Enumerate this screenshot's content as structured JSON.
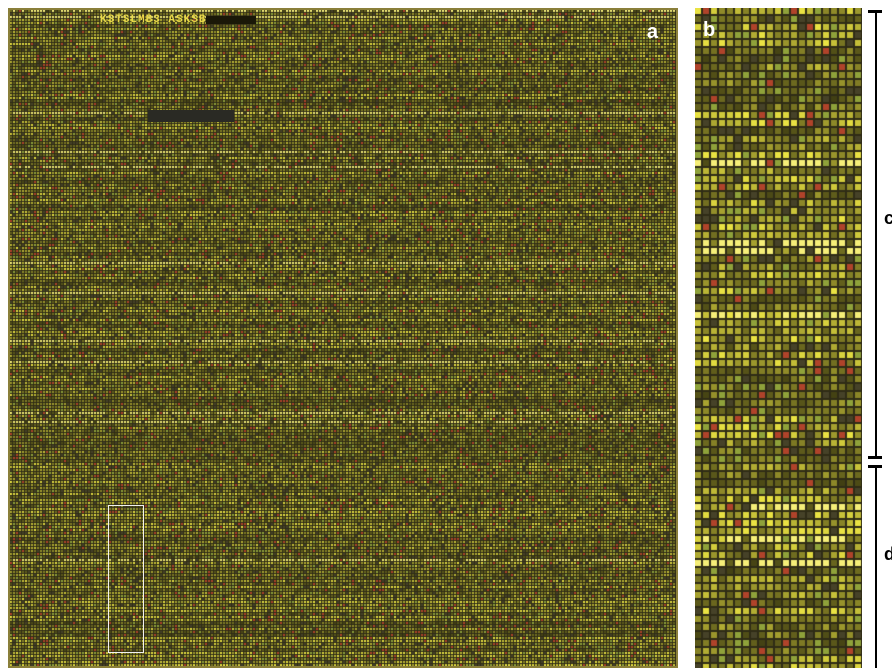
{
  "panels": {
    "a": {
      "label": "a",
      "header_text": "KSTSLMB3 ASKSB"
    },
    "b": {
      "label": "b"
    }
  },
  "brackets": {
    "c": {
      "label": "c"
    },
    "d": {
      "label": "d"
    }
  },
  "colors": {
    "background_dark": "#2f2c16",
    "spot_yellow": "#e9e24a",
    "spot_green": "#8fa23a",
    "spot_red": "#b0432a",
    "frame": "#8a7f3a"
  }
}
